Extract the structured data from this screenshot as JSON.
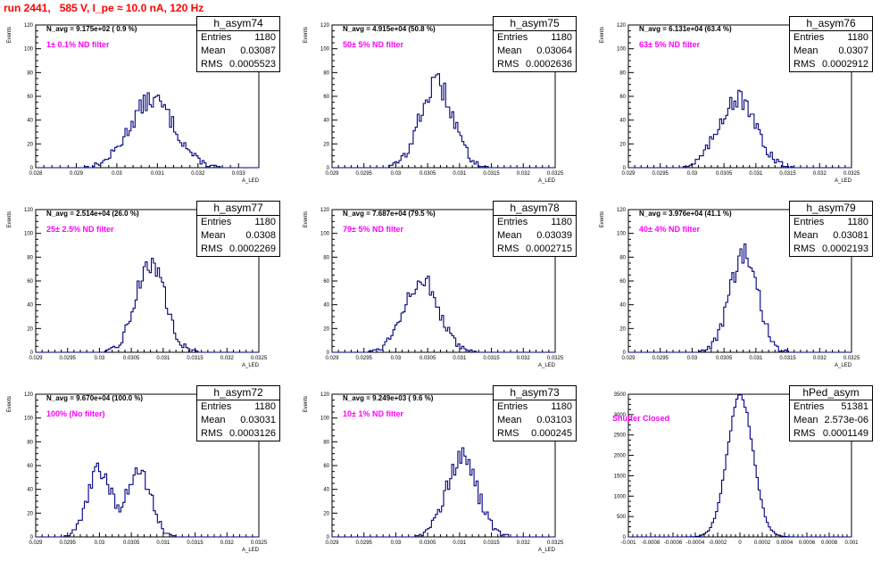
{
  "header": {
    "title": "run 2441,   585 V, I_pe ≈ 10.0 nA, 120 Hz"
  },
  "colors": {
    "hist": "#000080",
    "header": "#ff0000",
    "annotation": "#ff00ff"
  },
  "chart_data": [
    {
      "type": "histogram",
      "title": "h_asym74",
      "navg": "N_avg = 9.175e+02 ( 0.9 %)",
      "annotation": "1± 0.1% ND filter",
      "stats": {
        "entries": "1180",
        "mean": "0.03087",
        "rms": "0.0005523"
      },
      "ylabel": "Events",
      "xlabel": "A_LED",
      "xlim": [
        0.028,
        0.0335
      ],
      "ylim": [
        0,
        120
      ],
      "yticks": [
        0,
        20,
        40,
        60,
        80,
        100,
        120
      ],
      "yticklabels": [
        "0",
        "20",
        "40",
        "60",
        "80",
        "100",
        "120"
      ],
      "xticks": [
        0.028,
        0.029,
        0.03,
        0.031,
        0.032,
        0.033
      ],
      "xticklabels": [
        "0.028",
        "0.029",
        "0.03",
        "0.031",
        "0.032",
        "0.033"
      ],
      "mean": 0.03087,
      "sigma": 0.00055,
      "peak": 57
    },
    {
      "type": "histogram",
      "title": "h_asym75",
      "navg": "N_avg = 4.915e+04 (50.8 %)",
      "annotation": "50± 5% ND filter",
      "stats": {
        "entries": "1180",
        "mean": "0.03064",
        "rms": "0.0002636"
      },
      "ylabel": "Events",
      "xlabel": "A_LED",
      "xlim": [
        0.029,
        0.0325
      ],
      "ylim": [
        0,
        120
      ],
      "yticks": [
        0,
        20,
        40,
        60,
        80,
        100,
        120
      ],
      "yticklabels": [
        "0",
        "20",
        "40",
        "60",
        "80",
        "100",
        "120"
      ],
      "xticks": [
        0.029,
        0.0295,
        0.03,
        0.0305,
        0.031,
        0.0315,
        0.032,
        0.0325
      ],
      "xticklabels": [
        "0.029",
        "0.0295",
        "0.03",
        "0.0305",
        "0.031",
        "0.0315",
        "0.032",
        "0.0325"
      ],
      "mean": 0.03064,
      "sigma": 0.00026,
      "peak": 70
    },
    {
      "type": "histogram",
      "title": "h_asym76",
      "navg": "N_avg = 6.131e+04 (63.4 %)",
      "annotation": "63± 5% ND filter",
      "stats": {
        "entries": "1180",
        "mean": "0.0307",
        "rms": "0.0002912"
      },
      "ylabel": "Events",
      "xlabel": "A_LED",
      "xlim": [
        0.029,
        0.0325
      ],
      "ylim": [
        0,
        120
      ],
      "yticks": [
        0,
        20,
        40,
        60,
        80,
        100,
        120
      ],
      "yticklabels": [
        "0",
        "20",
        "40",
        "60",
        "80",
        "100",
        "120"
      ],
      "xticks": [
        0.029,
        0.0295,
        0.03,
        0.0305,
        0.031,
        0.0315,
        0.032,
        0.0325
      ],
      "xticklabels": [
        "0.029",
        "0.0295",
        "0.03",
        "0.0305",
        "0.031",
        "0.0315",
        "0.032",
        "0.0325"
      ],
      "mean": 0.0307,
      "sigma": 0.00029,
      "peak": 58
    },
    {
      "type": "histogram",
      "title": "h_asym77",
      "navg": "N_avg = 2.514e+04 (26.0 %)",
      "annotation": "25± 2.5% ND filter",
      "stats": {
        "entries": "1180",
        "mean": "0.0308",
        "rms": "0.0002269"
      },
      "ylabel": "Events",
      "xlabel": "A_LED",
      "xlim": [
        0.029,
        0.0325
      ],
      "ylim": [
        0,
        120
      ],
      "yticks": [
        0,
        20,
        40,
        60,
        80,
        100,
        120
      ],
      "yticklabels": [
        "0",
        "20",
        "40",
        "60",
        "80",
        "100",
        "120"
      ],
      "xticks": [
        0.029,
        0.0295,
        0.03,
        0.0305,
        0.031,
        0.0315,
        0.032,
        0.0325
      ],
      "xticklabels": [
        "0.029",
        "0.0295",
        "0.03",
        "0.0305",
        "0.031",
        "0.0315",
        "0.032",
        "0.0325"
      ],
      "mean": 0.0308,
      "sigma": 0.00023,
      "peak": 76
    },
    {
      "type": "histogram",
      "title": "h_asym78",
      "navg": "N_avg = 7.687e+04 (79.5 %)",
      "annotation": "79± 5% ND filter",
      "stats": {
        "entries": "1180",
        "mean": "0.03039",
        "rms": "0.0002715"
      },
      "ylabel": "Events",
      "xlabel": "A_LED",
      "xlim": [
        0.029,
        0.0325
      ],
      "ylim": [
        0,
        120
      ],
      "yticks": [
        0,
        20,
        40,
        60,
        80,
        100,
        120
      ],
      "yticklabels": [
        "0",
        "20",
        "40",
        "60",
        "80",
        "100",
        "120"
      ],
      "xticks": [
        0.029,
        0.0295,
        0.03,
        0.0305,
        0.031,
        0.0315,
        0.032,
        0.0325
      ],
      "xticklabels": [
        "0.029",
        "0.0295",
        "0.03",
        "0.0305",
        "0.031",
        "0.0315",
        "0.032",
        "0.0325"
      ],
      "mean": 0.03039,
      "sigma": 0.00027,
      "peak": 62
    },
    {
      "type": "histogram",
      "title": "h_asym79",
      "navg": "N_avg = 3.976e+04 (41.1 %)",
      "annotation": "40± 4% ND filter",
      "stats": {
        "entries": "1180",
        "mean": "0.03081",
        "rms": "0.0002193"
      },
      "ylabel": "Events",
      "xlabel": "A_LED",
      "xlim": [
        0.029,
        0.0325
      ],
      "ylim": [
        0,
        120
      ],
      "yticks": [
        0,
        20,
        40,
        60,
        80,
        100,
        120
      ],
      "yticklabels": [
        "0",
        "20",
        "40",
        "60",
        "80",
        "100",
        "120"
      ],
      "xticks": [
        0.029,
        0.0295,
        0.03,
        0.0305,
        0.031,
        0.0315,
        0.032,
        0.0325
      ],
      "xticklabels": [
        "0.029",
        "0.0295",
        "0.03",
        "0.0305",
        "0.031",
        "0.0315",
        "0.032",
        "0.0325"
      ],
      "mean": 0.03081,
      "sigma": 0.00022,
      "peak": 82
    },
    {
      "type": "histogram",
      "title": "h_asym72",
      "navg": "N_avg = 9.670e+04 (100.0 %)",
      "annotation": "100% (No filter)",
      "stats": {
        "entries": "1180",
        "mean": "0.03031",
        "rms": "0.0003126"
      },
      "ylabel": "Events",
      "xlabel": "A_LED",
      "xlim": [
        0.029,
        0.0325
      ],
      "ylim": [
        0,
        120
      ],
      "yticks": [
        0,
        20,
        40,
        60,
        80,
        100,
        120
      ],
      "yticklabels": [
        "0",
        "20",
        "40",
        "60",
        "80",
        "100",
        "120"
      ],
      "xticks": [
        0.029,
        0.0295,
        0.03,
        0.0305,
        0.031,
        0.0315,
        0.032,
        0.0325
      ],
      "xticklabels": [
        "0.029",
        "0.0295",
        "0.03",
        "0.0305",
        "0.031",
        "0.0315",
        "0.032",
        "0.0325"
      ],
      "bimodal": [
        {
          "mean": 0.03,
          "sigma": 0.00018,
          "peak": 57
        },
        {
          "mean": 0.03062,
          "sigma": 0.00018,
          "peak": 57
        }
      ]
    },
    {
      "type": "histogram",
      "title": "h_asym73",
      "navg": "N_avg = 9.249e+03 ( 9.6 %)",
      "annotation": "10± 1% ND filter",
      "stats": {
        "entries": "1180",
        "mean": "0.03103",
        "rms": "0.000245"
      },
      "ylabel": "Events",
      "xlabel": "A_LED",
      "xlim": [
        0.029,
        0.0325
      ],
      "ylim": [
        0,
        120
      ],
      "yticks": [
        0,
        20,
        40,
        60,
        80,
        100,
        120
      ],
      "yticklabels": [
        "0",
        "20",
        "40",
        "60",
        "80",
        "100",
        "120"
      ],
      "xticks": [
        0.029,
        0.0295,
        0.03,
        0.0305,
        0.031,
        0.0315,
        0.032,
        0.0325
      ],
      "xticklabels": [
        "0.029",
        "0.0295",
        "0.03",
        "0.0305",
        "0.031",
        "0.0315",
        "0.032",
        "0.0325"
      ],
      "mean": 0.03103,
      "sigma": 0.000245,
      "peak": 66
    },
    {
      "type": "histogram",
      "title": "hPed_asym",
      "navg": "",
      "annotation": "Shutter Closed",
      "stats": {
        "entries": "51381",
        "mean": "2.573e-06",
        "rms": "0.0001149"
      },
      "ylabel": "",
      "xlabel": "",
      "xlim": [
        -0.001,
        0.001
      ],
      "ylim": [
        0,
        3500
      ],
      "yticks": [
        0,
        500,
        1000,
        1500,
        2000,
        2500,
        3000,
        3500
      ],
      "yticklabels": [
        "0",
        "500",
        "1000",
        "1500",
        "2000",
        "2500",
        "3000",
        "3500"
      ],
      "xticks": [
        -0.001,
        -0.0008,
        -0.0006,
        -0.0004,
        -0.0002,
        0,
        0.0002,
        0.0004,
        0.0006,
        0.0008,
        0.001
      ],
      "xticklabels": [
        "-0.001",
        "-0.0008",
        "-0.0006",
        "-0.0004",
        "-0.0002",
        "0",
        "0.0002",
        "0.0004",
        "0.0006",
        "0.0008",
        "0.001"
      ],
      "mean": 2.6e-06,
      "sigma": 0.000115,
      "peak": 3450
    }
  ]
}
